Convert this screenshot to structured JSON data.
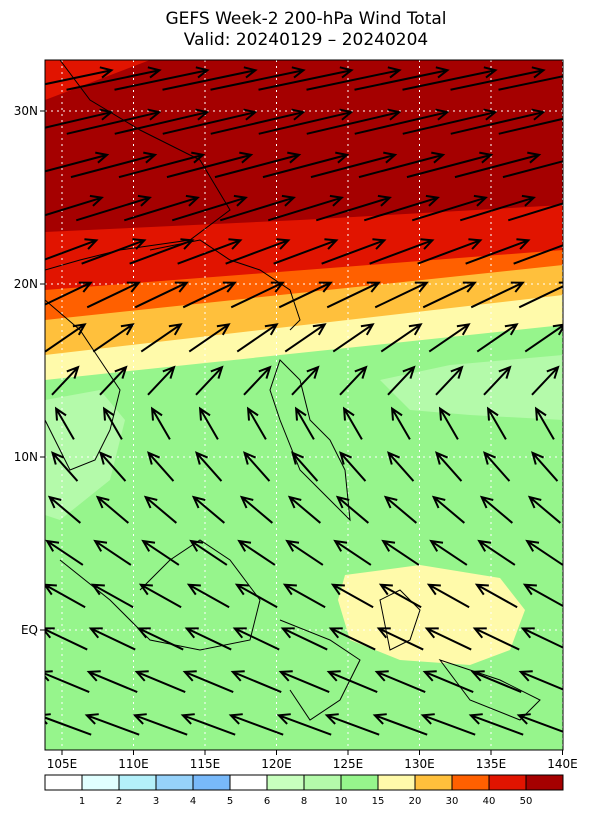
{
  "header": {
    "title": "GEFS Week-2 200-hPa Wind Total",
    "subtitle": "Valid: 20240129 – 20240204"
  },
  "map": {
    "lonticks": [
      {
        "value": 105,
        "label": "105E"
      },
      {
        "value": 110,
        "label": "110E"
      },
      {
        "value": 115,
        "label": "115E"
      },
      {
        "value": 120,
        "label": "120E"
      },
      {
        "value": 125,
        "label": "125E"
      },
      {
        "value": 130,
        "label": "130E"
      },
      {
        "value": 135,
        "label": "135E"
      },
      {
        "value": 140,
        "label": "140E"
      }
    ],
    "latticks": [
      {
        "value": 30,
        "label": "30N"
      },
      {
        "value": 20,
        "label": "20N"
      },
      {
        "value": 10,
        "label": "10N"
      },
      {
        "value": 0,
        "label": "EQ"
      }
    ]
  },
  "colorbar": {
    "levels": [
      1,
      2,
      3,
      4,
      5,
      6,
      8,
      10,
      15,
      20,
      30,
      40,
      50
    ],
    "colors": [
      "#ffffff",
      "#e1ffff",
      "#b4f0fa",
      "#96d2fa",
      "#78b9fa",
      "#ffffff",
      "#c8ffbe",
      "#b4faaa",
      "#96f58c",
      "#fffaaa",
      "#ffc03c",
      "#ff6000",
      "#e11400",
      "#a50000"
    ]
  }
}
